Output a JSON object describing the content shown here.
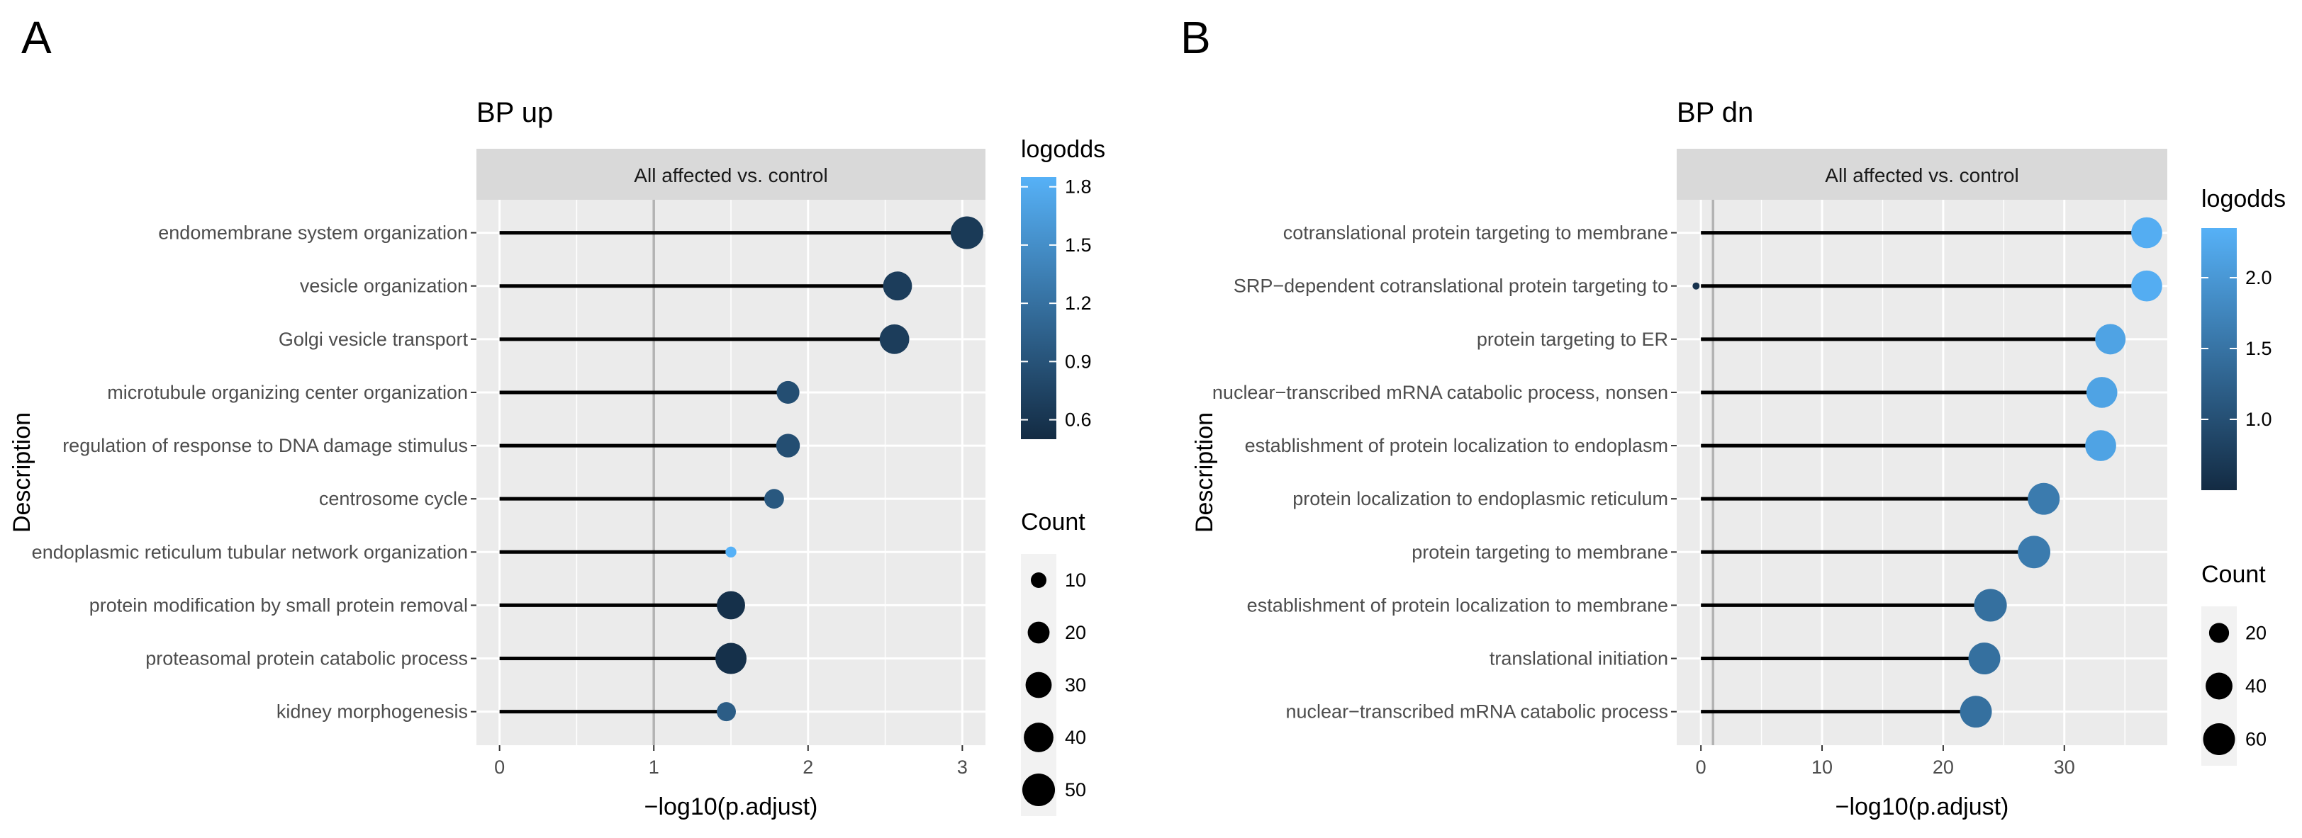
{
  "colors": {
    "low": "#132B43",
    "high": "#56B1F7",
    "panel_bg": "#EBEBEB",
    "strip_bg": "#D9D9D9",
    "grid": "#FFFFFF",
    "ref_line": "#B3B3B3",
    "segment": "#000000"
  },
  "chart_data": [
    {
      "panel_label": "A",
      "type": "lollipop",
      "title": "BP up",
      "facet": "All affected vs. control",
      "xlabel": "−log10(p.adjust)",
      "ylabel": "Description",
      "xlim": [
        -0.15,
        3.15
      ],
      "xticks": [
        0,
        1,
        2,
        3
      ],
      "xtick_labels": [
        "0",
        "1",
        "2",
        "3"
      ],
      "ref_x": 1,
      "segment_start": 0,
      "color_scale": {
        "title": "logodds",
        "min": 0.5,
        "max": 1.85,
        "ticks": [
          0.6,
          0.9,
          1.2,
          1.5,
          1.8
        ],
        "tick_labels": [
          "0.6",
          "0.9",
          "1.2",
          "1.5",
          "1.8"
        ]
      },
      "size_scale": {
        "title": "Count",
        "min": 5,
        "max": 55,
        "breaks": [
          10,
          20,
          30,
          40,
          50
        ],
        "break_labels": [
          "10",
          "20",
          "30",
          "40",
          "50"
        ]
      },
      "categories": [
        "endomembrane system organization",
        "vesicle organization",
        "Golgi vesicle transport",
        "microtubule organizing center organization",
        "regulation of response to DNA damage stimulus",
        "centrosome cycle",
        "endoplasmic reticulum tubular network organization",
        "protein modification by small protein removal",
        "proteasomal protein catabolic process",
        "kidney morphogenesis"
      ],
      "values": [
        3.03,
        2.58,
        2.56,
        1.87,
        1.87,
        1.78,
        1.5,
        1.5,
        1.5,
        1.47
      ],
      "counts": [
        50,
        38,
        40,
        22,
        24,
        16,
        6,
        36,
        45,
        15
      ],
      "logodds": [
        0.65,
        0.68,
        0.68,
        0.85,
        0.85,
        0.95,
        1.85,
        0.55,
        0.55,
        1.0
      ]
    },
    {
      "panel_label": "B",
      "type": "lollipop",
      "title": "BP dn",
      "facet": "All affected vs. control",
      "xlabel": "−log10(p.adjust)",
      "ylabel": "Description",
      "xlim": [
        -2,
        38.5
      ],
      "xticks": [
        0,
        10,
        20,
        30
      ],
      "xtick_labels": [
        "0",
        "10",
        "20",
        "30"
      ],
      "ref_x": 1,
      "segment_start": 0,
      "color_scale": {
        "title": "logodds",
        "min": 0.5,
        "max": 2.35,
        "ticks": [
          1.0,
          1.5,
          2.0
        ],
        "tick_labels": [
          "1.0",
          "1.5",
          "2.0"
        ]
      },
      "size_scale": {
        "title": "Count",
        "min": 5,
        "max": 70,
        "breaks": [
          20,
          40,
          60
        ],
        "break_labels": [
          "20",
          "40",
          "60"
        ]
      },
      "categories": [
        "cotranslational protein targeting to membrane",
        "SRP−dependent cotranslational protein targeting to",
        "protein targeting to ER",
        "nuclear−transcribed mRNA catabolic process, nonsen",
        "establishment of protein localization to endoplasm",
        "protein localization to endoplasmic reticulum",
        "protein targeting to membrane",
        "establishment of protein localization to membrane",
        "translational initiation",
        "nuclear−transcribed mRNA catabolic process"
      ],
      "values": [
        36.8,
        36.8,
        33.8,
        33.1,
        33.0,
        28.3,
        27.5,
        23.9,
        23.4,
        22.7
      ],
      "counts": [
        56,
        56,
        54,
        56,
        56,
        60,
        63,
        64,
        60,
        60
      ],
      "logodds": [
        2.3,
        2.3,
        2.15,
        2.15,
        2.15,
        1.6,
        1.6,
        1.45,
        1.45,
        1.45
      ],
      "extra_point": {
        "x": -0.4,
        "category_index": 1,
        "count": 5,
        "logodds": 0.6
      }
    }
  ]
}
